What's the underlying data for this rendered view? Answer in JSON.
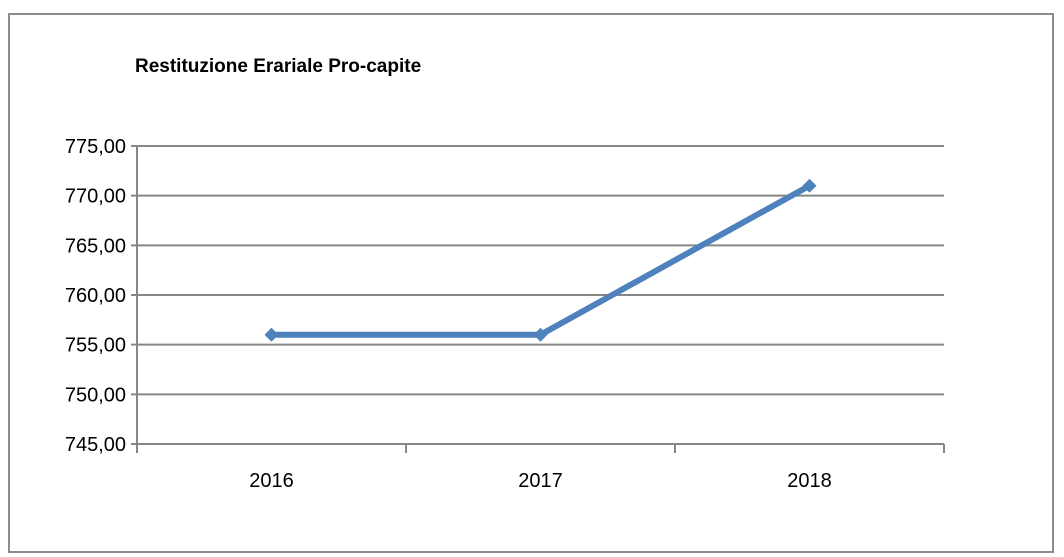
{
  "chart_data": {
    "type": "line",
    "title": "Restituzione Erariale Pro-capite",
    "xlabel": "",
    "ylabel": "",
    "categories": [
      "2016",
      "2017",
      "2018"
    ],
    "series": [
      {
        "values": [
          756,
          756,
          771
        ],
        "color": "#4f81bd"
      }
    ],
    "ylim": [
      745,
      775
    ],
    "y_ticks": [
      745,
      750,
      755,
      760,
      765,
      770,
      775
    ],
    "y_tick_labels": [
      "745,00",
      "750,00",
      "755,00",
      "760,00",
      "765,00",
      "770,00",
      "775,00"
    ],
    "grid": true,
    "legend": "none"
  }
}
